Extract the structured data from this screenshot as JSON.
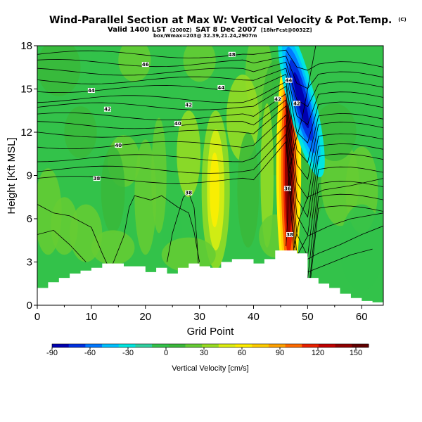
{
  "chart_data": {
    "type": "contour",
    "title": "Wind-Parallel Section at Max W: Vertical Velocity & Pot.Temp.",
    "copyright": "(C)",
    "subtitle_line1": "Valid 1400 LST",
    "subtitle_line1_small": "(2000Z)",
    "subtitle_line2": "SAT 8 Dec 2007",
    "subtitle_small": "[18hrFcst@0032Z]",
    "subtitle_line3": "box/Wmax=203@ 32.39,21.24,2907m",
    "xlabel": "Grid Point",
    "ylabel": "Height [Kft MSL]",
    "xlim": [
      0,
      64
    ],
    "ylim": [
      0,
      18
    ],
    "xticks": [
      "0",
      "10",
      "20",
      "30",
      "40",
      "50",
      "60"
    ],
    "yticks": [
      "0",
      "3",
      "6",
      "9",
      "12",
      "15",
      "18"
    ],
    "colorbar": {
      "label": "Vertical Velocity [cm/s]",
      "range": [
        -90,
        160
      ],
      "ticks": [
        "-90",
        "-60",
        "-30",
        "0",
        "30",
        "60",
        "90",
        "120",
        "150"
      ],
      "colors": [
        "#0000b0",
        "#0030e0",
        "#0078ff",
        "#00c0ff",
        "#00e6e0",
        "#30d0a0",
        "#33c24a",
        "#3ab83a",
        "#66cc33",
        "#99dd22",
        "#ddee11",
        "#ffee00",
        "#ffcc00",
        "#ffa000",
        "#ff6a00",
        "#e82000",
        "#c00000",
        "#900000",
        "#600000"
      ]
    },
    "terrain_heights_kft": [
      [
        0,
        1.2
      ],
      [
        2,
        1.6
      ],
      [
        4,
        1.9
      ],
      [
        6,
        2.2
      ],
      [
        8,
        2.4
      ],
      [
        10,
        2.6
      ],
      [
        12,
        2.9
      ],
      [
        14,
        2.9
      ],
      [
        16,
        2.7
      ],
      [
        18,
        2.7
      ],
      [
        20,
        2.3
      ],
      [
        22,
        2.6
      ],
      [
        24,
        2.2
      ],
      [
        26,
        2.6
      ],
      [
        28,
        2.9
      ],
      [
        30,
        2.7
      ],
      [
        32,
        2.6
      ],
      [
        34,
        3.0
      ],
      [
        36,
        3.2
      ],
      [
        38,
        3.2
      ],
      [
        40,
        2.9
      ],
      [
        42,
        3.2
      ],
      [
        44,
        3.8
      ],
      [
        46,
        3.8
      ],
      [
        48,
        3.6
      ],
      [
        50,
        1.9
      ],
      [
        52,
        1.5
      ],
      [
        54,
        1.2
      ],
      [
        56,
        0.8
      ],
      [
        58,
        0.5
      ],
      [
        60,
        0.3
      ],
      [
        62,
        0.2
      ],
      [
        64,
        0.2
      ]
    ],
    "updraft_core": {
      "x": 46.5,
      "z": 9.5,
      "w_max": 150
    },
    "downdraft_core": {
      "x": 48.3,
      "z": 15.0,
      "w_min": -90
    },
    "isentrope_labels": [
      {
        "text": "46",
        "x": 20,
        "z": 16.7
      },
      {
        "text": "48",
        "x": 36,
        "z": 17.4
      },
      {
        "text": "44",
        "x": 10,
        "z": 14.9
      },
      {
        "text": "44",
        "x": 34,
        "z": 15.1
      },
      {
        "text": "44",
        "x": 46.5,
        "z": 15.6
      },
      {
        "text": "42",
        "x": 13,
        "z": 13.6
      },
      {
        "text": "42",
        "x": 28,
        "z": 13.9
      },
      {
        "text": "42",
        "x": 44.5,
        "z": 14.3
      },
      {
        "text": "42",
        "x": 48,
        "z": 14.0
      },
      {
        "text": "40",
        "x": 26,
        "z": 12.6
      },
      {
        "text": "40",
        "x": 15,
        "z": 11.1
      },
      {
        "text": "38",
        "x": 11,
        "z": 8.8
      },
      {
        "text": "38",
        "x": 28,
        "z": 7.8
      },
      {
        "text": "36",
        "x": 46.3,
        "z": 8.1
      },
      {
        "text": "38",
        "x": 46.7,
        "z": 4.9
      }
    ]
  }
}
